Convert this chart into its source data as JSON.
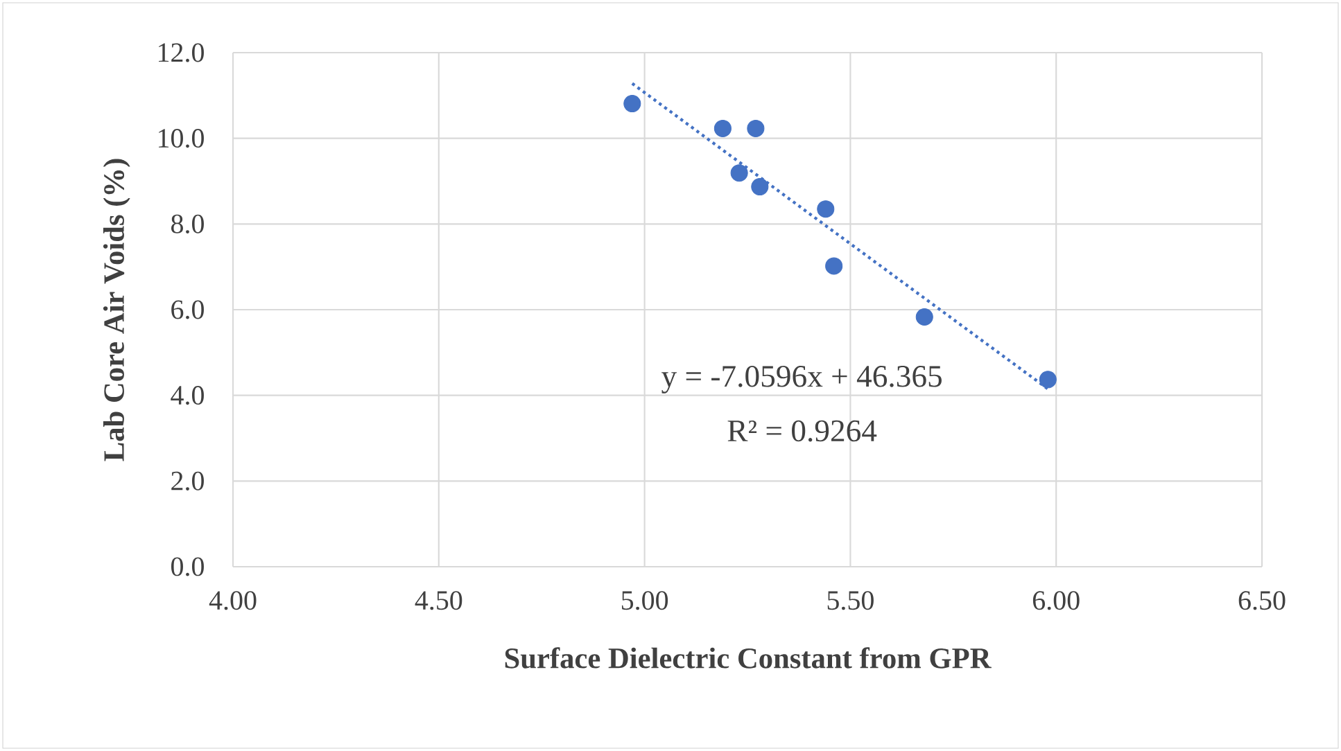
{
  "chart_data": {
    "type": "scatter",
    "xlabel": "Surface Dielectric Constant from GPR",
    "ylabel": "Lab Core Air Voids (%)",
    "series": [
      {
        "color": "#4472c4",
        "marker": "circle",
        "x": [
          4.97,
          5.19,
          5.27,
          5.23,
          5.28,
          5.44,
          5.46,
          5.68,
          5.98
        ],
        "values": [
          10.81,
          10.23,
          10.23,
          9.19,
          8.87,
          8.35,
          7.02,
          5.83,
          4.37
        ]
      },
      {
        "type": "line",
        "color": "#4472c4",
        "line_style": "dotted",
        "marker": "none",
        "x": [
          4.97,
          5.98
        ],
        "values": [
          11.28,
          4.15
        ]
      }
    ],
    "xlim": [
      4.0,
      6.5
    ],
    "xticks": [
      {
        "value": 4.0,
        "label": "4.00"
      },
      {
        "value": 4.5,
        "label": "4.50"
      },
      {
        "value": 5.0,
        "label": "5.00"
      },
      {
        "value": 5.5,
        "label": "5.50"
      },
      {
        "value": 6.0,
        "label": "6.00"
      },
      {
        "value": 6.5,
        "label": "6.50"
      }
    ],
    "ylim": [
      0,
      12
    ],
    "yticks": [
      {
        "value": 0,
        "label": "0.0"
      },
      {
        "value": 2,
        "label": "2.0"
      },
      {
        "value": 4,
        "label": "4.0"
      },
      {
        "value": 6,
        "label": "6.0"
      },
      {
        "value": 8,
        "label": "8.0"
      },
      {
        "value": 10,
        "label": "10.0"
      },
      {
        "value": 12,
        "label": "12.0"
      }
    ],
    "grid": true,
    "annotations": [
      "y = -7.0596x + 46.365",
      "R² = 0.9264"
    ]
  }
}
